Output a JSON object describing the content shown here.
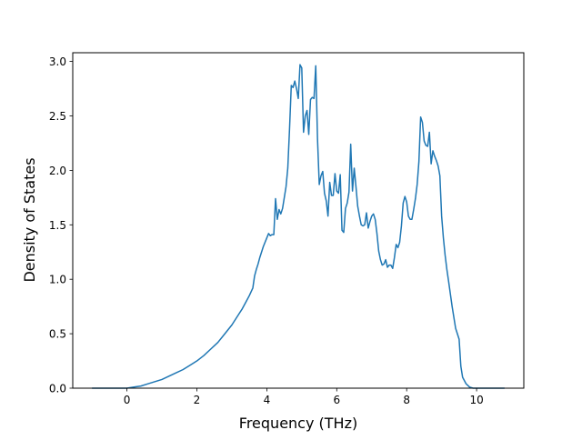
{
  "chart_data": {
    "type": "line",
    "title": "",
    "xlabel": "Frequency (THz)",
    "ylabel": "Density of States",
    "xlim": [
      -1.55,
      11.35
    ],
    "ylim": [
      0,
      3.08
    ],
    "xticks": [
      0,
      2,
      4,
      6,
      8,
      10
    ],
    "yticks": [
      0.0,
      0.5,
      1.0,
      1.5,
      2.0,
      2.5,
      3.0
    ],
    "xtick_labels": [
      "0",
      "2",
      "4",
      "6",
      "8",
      "10"
    ],
    "ytick_labels": [
      "0.0",
      "0.5",
      "1.0",
      "1.5",
      "2.0",
      "2.5",
      "3.0"
    ],
    "grid": false,
    "legend": "none",
    "line_color": "#1f77b4",
    "series": [
      {
        "x": [
          -1.0,
          -0.5,
          0.0,
          0.2,
          0.4,
          0.6,
          0.8,
          1.0,
          1.2,
          1.4,
          1.6,
          1.8,
          2.0,
          2.2,
          2.4,
          2.6,
          2.8,
          3.0,
          3.1,
          3.2,
          3.3,
          3.4,
          3.5,
          3.6,
          3.65,
          3.7,
          3.75,
          3.8,
          3.9,
          4.0,
          4.05,
          4.1,
          4.15,
          4.2,
          4.25,
          4.3,
          4.35,
          4.4,
          4.45,
          4.5,
          4.55,
          4.6,
          4.65,
          4.7,
          4.75,
          4.8,
          4.85,
          4.9,
          4.95,
          5.0,
          5.05,
          5.1,
          5.15,
          5.2,
          5.25,
          5.3,
          5.35,
          5.4,
          5.45,
          5.5,
          5.55,
          5.6,
          5.65,
          5.7,
          5.75,
          5.8,
          5.85,
          5.9,
          5.95,
          6.0,
          6.05,
          6.1,
          6.15,
          6.2,
          6.25,
          6.3,
          6.35,
          6.4,
          6.45,
          6.5,
          6.55,
          6.6,
          6.65,
          6.7,
          6.75,
          6.8,
          6.85,
          6.9,
          6.95,
          7.0,
          7.05,
          7.1,
          7.15,
          7.2,
          7.25,
          7.3,
          7.35,
          7.4,
          7.45,
          7.5,
          7.55,
          7.6,
          7.65,
          7.7,
          7.75,
          7.8,
          7.85,
          7.9,
          7.95,
          8.0,
          8.05,
          8.1,
          8.15,
          8.2,
          8.25,
          8.3,
          8.35,
          8.4,
          8.45,
          8.5,
          8.55,
          8.6,
          8.65,
          8.7,
          8.75,
          8.8,
          8.85,
          8.9,
          8.95,
          9.0,
          9.05,
          9.1,
          9.15,
          9.2,
          9.3,
          9.4,
          9.5,
          9.55,
          9.6,
          9.7,
          9.8,
          9.9,
          10.0,
          10.5,
          10.8
        ],
        "y": [
          0.0,
          0.0,
          0.0,
          0.01,
          0.02,
          0.04,
          0.06,
          0.08,
          0.11,
          0.14,
          0.17,
          0.21,
          0.25,
          0.3,
          0.36,
          0.42,
          0.5,
          0.58,
          0.63,
          0.68,
          0.73,
          0.79,
          0.85,
          0.92,
          1.03,
          1.09,
          1.14,
          1.2,
          1.3,
          1.38,
          1.42,
          1.4,
          1.41,
          1.41,
          1.74,
          1.55,
          1.64,
          1.6,
          1.65,
          1.75,
          1.85,
          2.02,
          2.38,
          2.78,
          2.76,
          2.82,
          2.75,
          2.66,
          2.97,
          2.94,
          2.35,
          2.5,
          2.55,
          2.33,
          2.65,
          2.67,
          2.66,
          2.96,
          2.29,
          1.87,
          1.95,
          1.99,
          1.79,
          1.72,
          1.58,
          1.89,
          1.77,
          1.77,
          1.97,
          1.81,
          1.79,
          1.96,
          1.45,
          1.43,
          1.65,
          1.7,
          1.8,
          2.24,
          1.81,
          2.02,
          1.85,
          1.67,
          1.58,
          1.5,
          1.49,
          1.5,
          1.61,
          1.47,
          1.53,
          1.58,
          1.6,
          1.55,
          1.42,
          1.26,
          1.18,
          1.13,
          1.14,
          1.18,
          1.11,
          1.13,
          1.13,
          1.1,
          1.2,
          1.32,
          1.29,
          1.34,
          1.49,
          1.7,
          1.76,
          1.71,
          1.58,
          1.55,
          1.55,
          1.64,
          1.74,
          1.87,
          2.08,
          2.49,
          2.44,
          2.27,
          2.23,
          2.22,
          2.35,
          2.06,
          2.18,
          2.13,
          2.09,
          2.04,
          1.95,
          1.58,
          1.38,
          1.22,
          1.09,
          0.98,
          0.75,
          0.55,
          0.45,
          0.2,
          0.1,
          0.04,
          0.01,
          0.0,
          0.0,
          0.0,
          0.0
        ]
      }
    ]
  }
}
